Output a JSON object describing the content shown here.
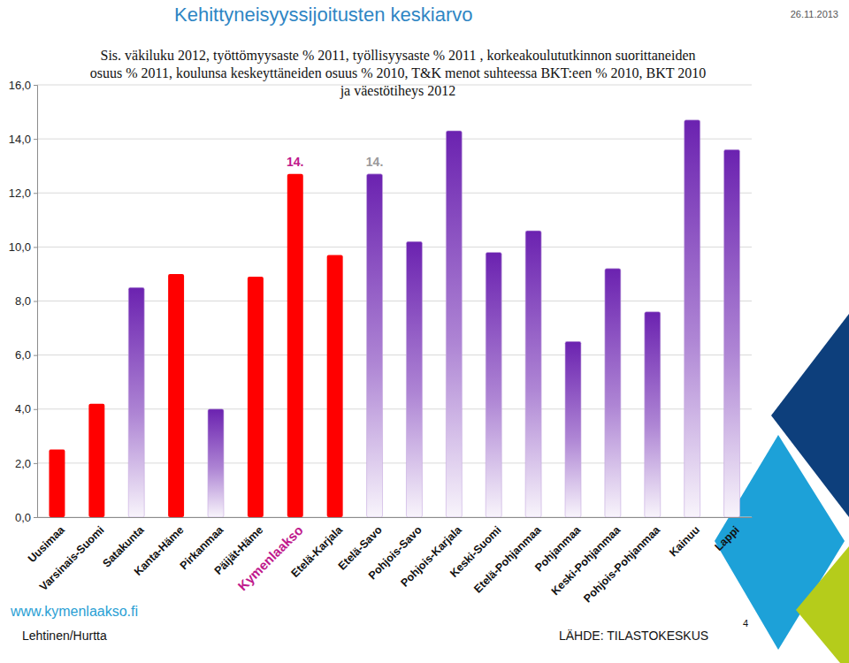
{
  "chart_data": {
    "type": "bar",
    "title": "Kehittyneisyyssijoitusten keskiarvo",
    "date": "26.11.2013",
    "subtitle": [
      "Sis. väkiluku 2012, työttömyysaste % 2011, työllisyysaste % 2011 , korkeakoulututkinnon suorittaneiden",
      "osuus % 2011, koulunsa keskeyttäneiden osuus % 2010, T&K menot suhteessa BKT:een % 2010, BKT 2010",
      "ja väestötiheys 2012"
    ],
    "categories": [
      "Uusimaa",
      "Varsinais-Suomi",
      "Satakunta",
      "Kanta-Häme",
      "Pirkanmaa",
      "Päijät-Häme",
      "Kymenlaakso",
      "Etelä-Karjala",
      "Etelä-Savo",
      "Pohjois-Savo",
      "Pohjois-Karjala",
      "Keski-Suomi",
      "Etelä-Pohjanmaa",
      "Pohjanmaa",
      "Keski-Pohjanmaa",
      "Pohjois-Pohjanmaa",
      "Kainuu",
      "Lappi"
    ],
    "values": [
      2.5,
      4.2,
      8.5,
      9.0,
      4.0,
      8.9,
      12.7,
      9.7,
      12.7,
      10.2,
      14.3,
      9.8,
      10.6,
      6.5,
      9.2,
      7.6,
      14.7,
      13.6
    ],
    "colors": [
      "#ff0000",
      "#ff0000",
      "#6b22b0",
      "#ff0000",
      "#6b22b0",
      "#ff0000",
      "#ff0000",
      "#ff0000",
      "#6b22b0",
      "#6b22b0",
      "#6b22b0",
      "#6b22b0",
      "#6b22b0",
      "#6b22b0",
      "#6b22b0",
      "#6b22b0",
      "#6b22b0",
      "#6b22b0"
    ],
    "ylim": [
      0,
      16
    ],
    "yticks": [
      {
        "value": 0,
        "label": "0,0"
      },
      {
        "value": 2,
        "label": "2,0"
      },
      {
        "value": 4,
        "label": "4,0"
      },
      {
        "value": 6,
        "label": "6,0"
      },
      {
        "value": 8,
        "label": "8,0"
      },
      {
        "value": 10,
        "label": "10,0"
      },
      {
        "value": 12,
        "label": "12,0"
      },
      {
        "value": 14,
        "label": "14,0"
      },
      {
        "value": 16,
        "label": "16,0"
      }
    ],
    "grid": true,
    "annotations": [
      {
        "text": "14.",
        "category": "Kymenlaakso",
        "color": "#c0198c"
      },
      {
        "text": "14.",
        "category": "Etelä-Savo",
        "color": "#9a9a9a"
      }
    ],
    "url": "www.kymenlaakso.fi",
    "author": "Lehtinen/Hurtta",
    "source": "LÄHDE: TILASTOKESKUS",
    "page": "4"
  }
}
